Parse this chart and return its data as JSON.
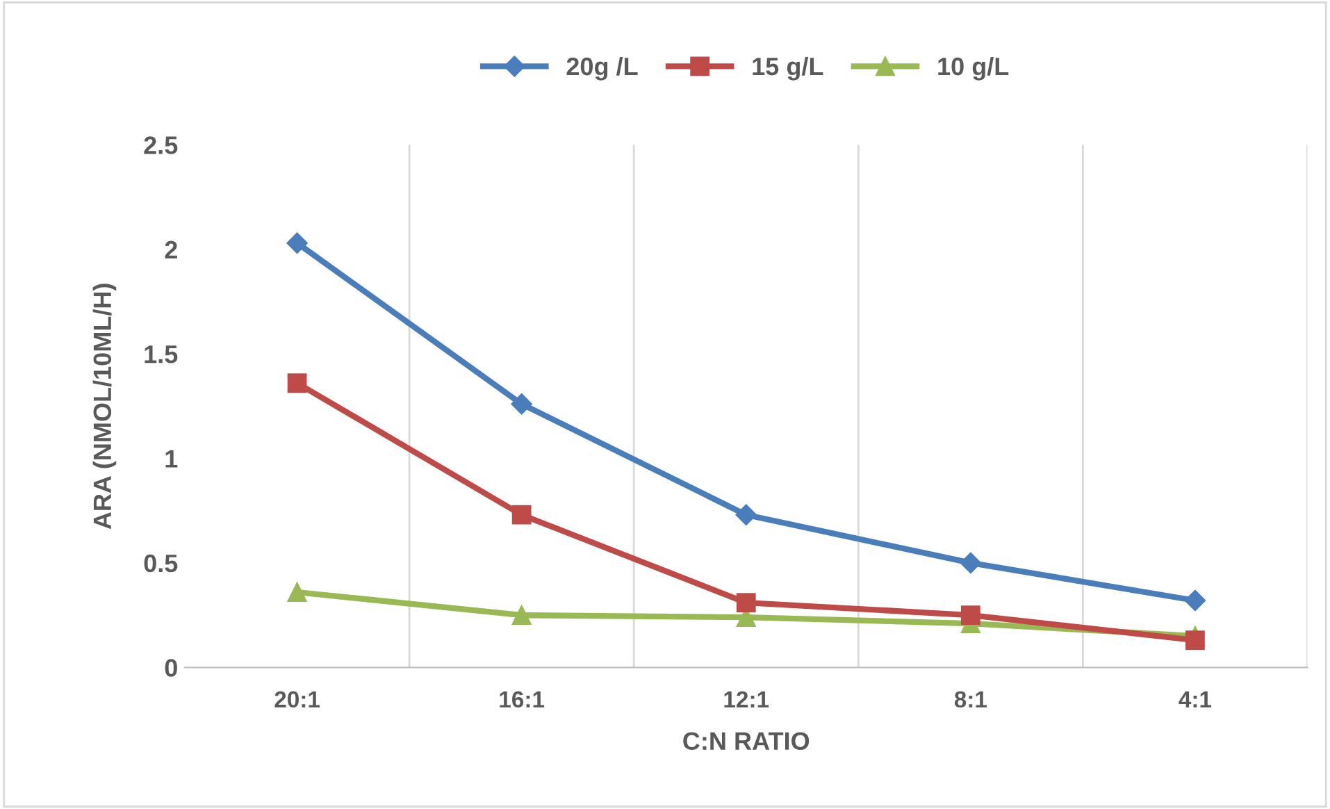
{
  "chart_data": {
    "type": "line",
    "xlabel": "C:N RATIO",
    "ylabel": "ARA (NMOL/10ML/H)",
    "categories": [
      "20:1",
      "16:1",
      "12:1",
      "8:1",
      "4:1"
    ],
    "series": [
      {
        "name": "20g /L",
        "color": "#4a7ebb",
        "marker": "diamond",
        "values": [
          2.03,
          1.26,
          0.73,
          0.5,
          0.32
        ]
      },
      {
        "name": "15 g/L",
        "color": "#be4b48",
        "marker": "square",
        "values": [
          1.36,
          0.73,
          0.31,
          0.25,
          0.13
        ]
      },
      {
        "name": "10 g/L",
        "color": "#98b954",
        "marker": "triangle",
        "values": [
          0.36,
          0.25,
          0.24,
          0.21,
          0.15
        ]
      }
    ],
    "ylim": [
      0,
      2.5
    ],
    "yticks": [
      0,
      0.5,
      1,
      1.5,
      2,
      2.5
    ],
    "grid": "x",
    "legend": "top",
    "line_style": "solid"
  }
}
